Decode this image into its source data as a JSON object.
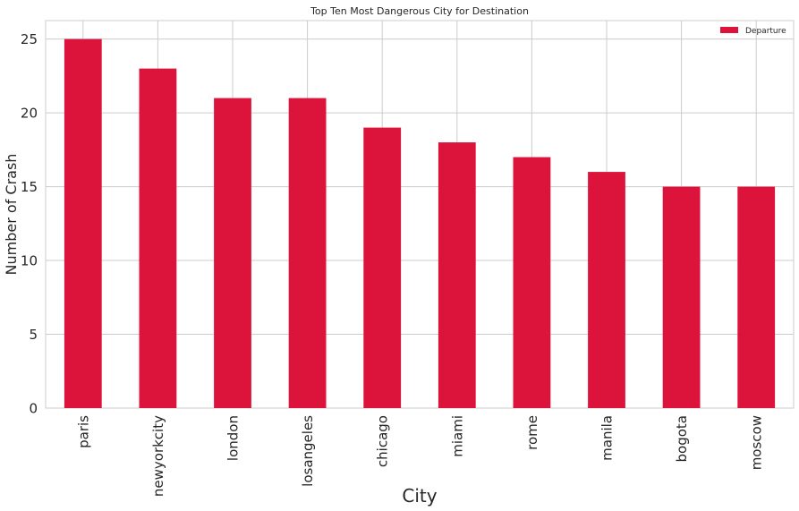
{
  "chart_data": {
    "type": "bar",
    "title": "Top Ten Most Dangerous City for Destination",
    "xlabel": "City",
    "ylabel": "Number of Crash",
    "categories": [
      "paris",
      "newyorkcity",
      "london",
      "losangeles",
      "chicago",
      "miami",
      "rome",
      "manila",
      "bogota",
      "moscow"
    ],
    "series": [
      {
        "name": "Departure",
        "values": [
          25,
          23,
          21,
          21,
          19,
          18,
          17,
          16,
          15,
          15
        ],
        "color": "#dc143c"
      }
    ],
    "ylim": [
      0,
      26.25
    ],
    "yticks": [
      0,
      5,
      10,
      15,
      20,
      25
    ],
    "grid": true,
    "legend_position": "top-right",
    "colors": {
      "grid": "#cccccc",
      "text": "#262626",
      "background": "#ffffff"
    }
  }
}
